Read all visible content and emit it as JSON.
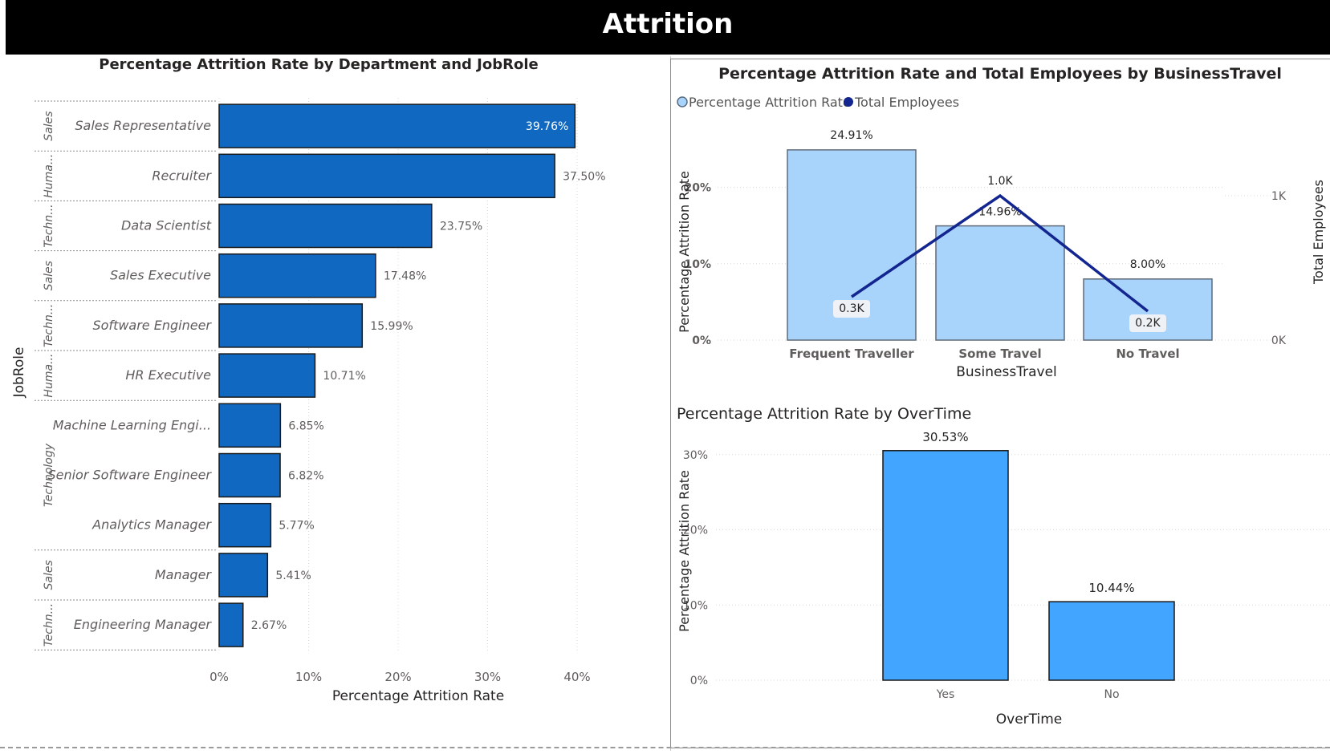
{
  "header": {
    "title": "Attrition"
  },
  "chart_data": [
    {
      "type": "bar",
      "orientation": "horizontal",
      "title": "Percentage Attrition Rate by Department and JobRole",
      "xlabel": "Percentage Attrition Rate",
      "ylabel": "JobRole",
      "xlim": [
        0,
        40
      ],
      "xticks": [
        "0%",
        "10%",
        "20%",
        "30%",
        "40%"
      ],
      "bar_color": "#1068c0",
      "groups": [
        {
          "department": "Sales",
          "roles": [
            0
          ]
        },
        {
          "department": "Huma...",
          "roles": [
            1
          ]
        },
        {
          "department": "Techn...",
          "roles": [
            2
          ]
        },
        {
          "department": "Sales",
          "roles": [
            3
          ]
        },
        {
          "department": "Techn...",
          "roles": [
            4
          ]
        },
        {
          "department": "Huma...",
          "roles": [
            5
          ]
        },
        {
          "department": "Technology",
          "roles": [
            6,
            7,
            8
          ]
        },
        {
          "department": "Sales",
          "roles": [
            9
          ]
        },
        {
          "department": "Techn...",
          "roles": [
            10
          ]
        }
      ],
      "categories": [
        "Sales Representative",
        "Recruiter",
        "Data Scientist",
        "Sales Executive",
        "Software Engineer",
        "HR Executive",
        "Machine Learning Engi...",
        "Senior Software Engineer",
        "Analytics Manager",
        "Manager",
        "Engineering Manager"
      ],
      "values": [
        39.76,
        37.5,
        23.75,
        17.48,
        15.99,
        10.71,
        6.85,
        6.82,
        5.77,
        5.41,
        2.67
      ],
      "labels": [
        "39.76%",
        "37.50%",
        "23.75%",
        "17.48%",
        "15.99%",
        "10.71%",
        "6.85%",
        "6.82%",
        "5.77%",
        "5.41%",
        "2.67%"
      ]
    },
    {
      "type": "bar+line",
      "title": "Percentage Attrition Rate and Total Employees by BusinessTravel",
      "xlabel": "BusinessTravel",
      "ylabel": "Percentage Attrition Rate",
      "y2label": "Total Employees",
      "legend": [
        "Percentage Attrition Rate",
        "Total Employees"
      ],
      "legend_placement": "top-left",
      "categories": [
        "Frequent Traveller",
        "Some Travel",
        "No Travel"
      ],
      "bar_values": [
        24.91,
        14.96,
        8.0
      ],
      "bar_labels": [
        "24.91%",
        "14.96%",
        "8.00%"
      ],
      "line_values": [
        0.3,
        1.0,
        0.2
      ],
      "line_labels": [
        "0.3K",
        "1.0K",
        "0.2K"
      ],
      "ylim": [
        0,
        25
      ],
      "yticks": [
        "0%",
        "10%",
        "20%"
      ],
      "y2ticks": [
        "0K",
        "1K"
      ],
      "bar_color": "#a8d3fb",
      "line_color": "#13258f"
    },
    {
      "type": "bar",
      "title": "Percentage Attrition Rate by OverTime",
      "xlabel": "OverTime",
      "ylabel": "Percentage Attrition Rate",
      "categories": [
        "Yes",
        "No"
      ],
      "values": [
        30.53,
        10.44
      ],
      "labels": [
        "30.53%",
        "10.44%"
      ],
      "ylim": [
        0,
        32
      ],
      "yticks": [
        "0%",
        "10%",
        "20%",
        "30%"
      ],
      "bar_color": "#42a5ff"
    }
  ]
}
